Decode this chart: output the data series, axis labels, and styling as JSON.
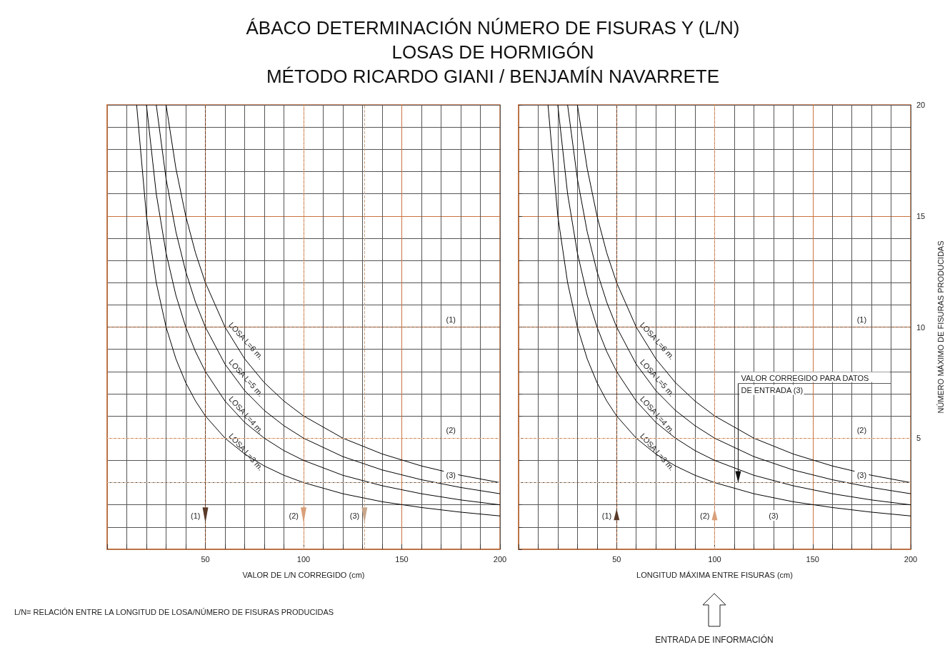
{
  "chart_data": [
    {
      "type": "line",
      "title": "ÁBACO DETERMINACIÓN NÚMERO DE FISURAS Y (L/N)\nLOSAS DE HORMIGÓN\nMÉTODO RICARDO GIANI / BENJAMÍN NAVARRETE",
      "xlabel": "VALOR DE L/N CORREGIDO (cm)",
      "annotations": [
        "L/N= RELACIÓN ENTRE LA LONGITUD DE LOSA/NÚMERO DE FISURAS PRODUCIDAS",
        {
          "text": "(1)",
          "x": 175,
          "y": 10
        },
        {
          "text": "(2)",
          "x": 175,
          "y": 5
        },
        {
          "text": "(3)",
          "x": 175,
          "y": 3
        },
        {
          "text": "(1)",
          "x": 50,
          "y": 1.5
        },
        {
          "text": "(2)",
          "x": 100,
          "y": 1.5
        },
        {
          "text": "(3)",
          "x": 131,
          "y": 1.5
        }
      ],
      "series": [
        {
          "name": "LOSA L=6 m.",
          "color": "#000000",
          "x": [
            30,
            35,
            40,
            45,
            50,
            60,
            70,
            80,
            90,
            100,
            120,
            140,
            160,
            180,
            200
          ],
          "values": [
            20,
            17.14,
            15,
            13.33,
            12,
            10,
            8.57,
            7.5,
            6.67,
            6,
            5,
            4.29,
            3.75,
            3.33,
            3
          ]
        },
        {
          "name": "LOSA L=5 m.",
          "color": "#000000",
          "x": [
            25,
            30,
            35,
            40,
            45,
            50,
            60,
            70,
            80,
            90,
            100,
            120,
            140,
            160,
            180,
            200
          ],
          "values": [
            20,
            16.67,
            14.29,
            12.5,
            11.11,
            10,
            8.33,
            7.14,
            6.25,
            5.56,
            5,
            4.17,
            3.57,
            3.13,
            2.78,
            2.5
          ]
        },
        {
          "name": "LOSA L=4 m.",
          "color": "#000000",
          "x": [
            20,
            25,
            30,
            35,
            40,
            45,
            50,
            60,
            70,
            80,
            90,
            100,
            120,
            140,
            160,
            180,
            200
          ],
          "values": [
            20,
            16,
            13.33,
            11.43,
            10,
            8.89,
            8,
            6.67,
            5.71,
            5,
            4.44,
            4,
            3.33,
            2.86,
            2.5,
            2.22,
            2
          ]
        },
        {
          "name": "LOSA L=3 m.",
          "color": "#000000",
          "x": [
            15,
            20,
            25,
            30,
            35,
            40,
            45,
            50,
            60,
            70,
            80,
            90,
            100,
            120,
            140,
            160,
            180,
            200
          ],
          "values": [
            20,
            15,
            12,
            10,
            8.57,
            7.5,
            6.67,
            6,
            5,
            4.29,
            3.75,
            3.33,
            3,
            2.5,
            2.14,
            1.88,
            1.67,
            1.5
          ]
        }
      ],
      "xlim": [
        0,
        200
      ],
      "xticks": [
        {
          "value": 10,
          "label": null
        },
        {
          "value": 20,
          "label": null
        },
        {
          "value": 30,
          "label": null
        },
        {
          "value": 40,
          "label": null
        },
        50,
        {
          "value": 60,
          "label": null
        },
        {
          "value": 70,
          "label": null
        },
        {
          "value": 80,
          "label": null
        },
        {
          "value": 90,
          "label": null
        },
        100,
        {
          "value": 110,
          "label": null
        },
        {
          "value": 120,
          "label": null
        },
        {
          "value": 130,
          "label": null
        },
        {
          "value": 140,
          "label": null
        },
        150,
        {
          "value": 160,
          "label": null
        },
        {
          "value": 170,
          "label": null
        },
        {
          "value": 180,
          "label": null
        },
        {
          "value": 190,
          "label": null
        },
        200
      ],
      "ylim": [
        0,
        20
      ],
      "yticks": [
        {
          "value": 1,
          "label": null
        },
        {
          "value": 2,
          "label": null
        },
        {
          "value": 3,
          "label": null
        },
        {
          "value": 4,
          "label": null
        },
        5,
        {
          "value": 6,
          "label": null
        },
        {
          "value": 7,
          "label": null
        },
        {
          "value": 8,
          "label": null
        },
        {
          "value": 9,
          "label": null
        },
        10,
        {
          "value": 11,
          "label": null
        },
        {
          "value": 12,
          "label": null
        },
        {
          "value": 13,
          "label": null
        },
        {
          "value": 14,
          "label": null
        },
        15,
        {
          "value": 16,
          "label": null
        },
        {
          "value": 17,
          "label": null
        },
        {
          "value": 18,
          "label": null
        },
        {
          "value": 19,
          "label": null
        },
        20
      ],
      "tick_labels": "x",
      "ref_lines": [
        {
          "axis": "y",
          "value": 10,
          "color": "#7a5238",
          "line_style": "dashed"
        },
        {
          "axis": "y",
          "value": 5,
          "color": "#e8c4a8",
          "line_style": "dashed"
        },
        {
          "axis": "y",
          "value": 3,
          "color": "#d9b89c",
          "line_style": "dashed"
        },
        {
          "axis": "x",
          "value": 50,
          "color": "#5a3a28",
          "line_style": "dashed"
        },
        {
          "axis": "x",
          "value": 100,
          "color": "#d9a07a",
          "line_style": "dashed"
        },
        {
          "axis": "x",
          "value": 131,
          "color": "#c9a68a",
          "line_style": "dashed"
        }
      ],
      "grid": true,
      "legend": false,
      "marker": "none",
      "line_style": "solid"
    },
    {
      "type": "line",
      "xlabel": "LONGITUD MÁXIMA ENTRE FISURAS (cm)",
      "ylabel": "NÚMERO MÁXIMO DE FISURAS PRODUCIDAS",
      "annotations": [
        "ENTRADA DE INFORMACIÓN",
        "(3)",
        {
          "text": "VALOR CORREGIDO PARA DATOS\nDE ENTRADA (3)",
          "x": 112,
          "y": 3
        },
        {
          "text": "(1)",
          "x": 175,
          "y": 10
        },
        {
          "text": "(2)",
          "x": 175,
          "y": 5
        },
        {
          "text": "(3)",
          "x": 175,
          "y": 3
        },
        {
          "text": "(1)",
          "x": 50,
          "y": 1.5
        },
        {
          "text": "(2)",
          "x": 100,
          "y": 1.5
        }
      ],
      "series": [
        {
          "name": "LOSA L=6 m.",
          "color": "#000000",
          "x": [
            30,
            35,
            40,
            45,
            50,
            60,
            70,
            80,
            90,
            100,
            120,
            140,
            160,
            180,
            200
          ],
          "values": [
            20,
            17.14,
            15,
            13.33,
            12,
            10,
            8.57,
            7.5,
            6.67,
            6,
            5,
            4.29,
            3.75,
            3.33,
            3
          ]
        },
        {
          "name": "LOSA L=5 m.",
          "color": "#000000",
          "x": [
            25,
            30,
            35,
            40,
            45,
            50,
            60,
            70,
            80,
            90,
            100,
            120,
            140,
            160,
            180,
            200
          ],
          "values": [
            20,
            16.67,
            14.29,
            12.5,
            11.11,
            10,
            8.33,
            7.14,
            6.25,
            5.56,
            5,
            4.17,
            3.57,
            3.13,
            2.78,
            2.5
          ]
        },
        {
          "name": "LOSA L=4 m.",
          "color": "#000000",
          "x": [
            20,
            25,
            30,
            35,
            40,
            45,
            50,
            60,
            70,
            80,
            90,
            100,
            120,
            140,
            160,
            180,
            200
          ],
          "values": [
            20,
            16,
            13.33,
            11.43,
            10,
            8.89,
            8,
            6.67,
            5.71,
            5,
            4.44,
            4,
            3.33,
            2.86,
            2.5,
            2.22,
            2
          ]
        },
        {
          "name": "LOSA L=3 m.",
          "color": "#000000",
          "x": [
            15,
            20,
            25,
            30,
            35,
            40,
            45,
            50,
            60,
            70,
            80,
            90,
            100,
            120,
            140,
            160,
            180,
            200
          ],
          "values": [
            20,
            15,
            12,
            10,
            8.57,
            7.5,
            6.67,
            6,
            5,
            4.29,
            3.75,
            3.33,
            3,
            2.5,
            2.14,
            1.88,
            1.67,
            1.5
          ]
        }
      ],
      "xlim": [
        0,
        200
      ],
      "xticks": [
        {
          "value": 10,
          "label": null
        },
        {
          "value": 20,
          "label": null
        },
        {
          "value": 30,
          "label": null
        },
        {
          "value": 40,
          "label": null
        },
        50,
        {
          "value": 60,
          "label": null
        },
        {
          "value": 70,
          "label": null
        },
        {
          "value": 80,
          "label": null
        },
        {
          "value": 90,
          "label": null
        },
        100,
        {
          "value": 110,
          "label": null
        },
        {
          "value": 120,
          "label": null
        },
        {
          "value": 130,
          "label": null
        },
        {
          "value": 140,
          "label": null
        },
        150,
        {
          "value": 160,
          "label": null
        },
        {
          "value": 170,
          "label": null
        },
        {
          "value": 180,
          "label": null
        },
        {
          "value": 190,
          "label": null
        },
        200
      ],
      "ylim": [
        0,
        20
      ],
      "yticks": [
        {
          "value": 1,
          "label": null
        },
        {
          "value": 2,
          "label": null
        },
        {
          "value": 3,
          "label": null
        },
        {
          "value": 4,
          "label": null
        },
        5,
        {
          "value": 6,
          "label": null
        },
        {
          "value": 7,
          "label": null
        },
        {
          "value": 8,
          "label": null
        },
        {
          "value": 9,
          "label": null
        },
        10,
        {
          "value": 11,
          "label": null
        },
        {
          "value": 12,
          "label": null
        },
        {
          "value": 13,
          "label": null
        },
        {
          "value": 14,
          "label": null
        },
        15,
        {
          "value": 16,
          "label": null
        },
        {
          "value": 17,
          "label": null
        },
        {
          "value": 18,
          "label": null
        },
        {
          "value": 19,
          "label": null
        },
        20
      ],
      "ref_lines": [
        {
          "axis": "y",
          "value": 10,
          "color": "#7a5238",
          "line_style": "dashed"
        },
        {
          "axis": "y",
          "value": 5,
          "color": "#e8c4a8",
          "line_style": "dashed"
        },
        {
          "axis": "y",
          "value": 3,
          "color": "#d9b89c",
          "line_style": "dashed"
        },
        {
          "axis": "x",
          "value": 50,
          "color": "#5a3a28",
          "line_style": "dashed"
        },
        {
          "axis": "x",
          "value": 100,
          "color": "#d9a07a",
          "line_style": "dashed"
        }
      ],
      "grid": true,
      "legend": false,
      "marker": "none",
      "line_style": "solid"
    }
  ]
}
